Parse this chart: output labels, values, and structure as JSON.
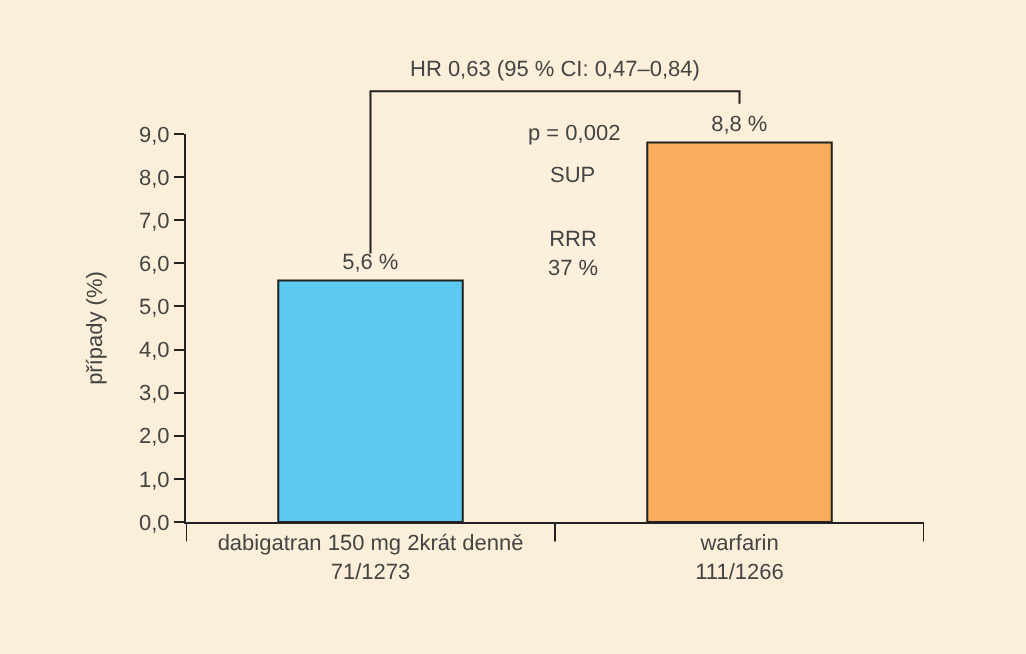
{
  "chart_data": {
    "type": "bar",
    "categories": [
      "dabigatran 150 mg 2krát denně\n71/1273",
      "warfarin\n111/1266"
    ],
    "values": [
      5.6,
      8.8
    ],
    "colors": [
      "#5ec9f2",
      "#f9ac5e"
    ],
    "value_labels": [
      "5,6 %",
      "8,8 %"
    ],
    "ylabel": "případy (%)",
    "ylim": [
      0,
      9
    ],
    "yticks": [
      {
        "value": 0,
        "label": "0,0"
      },
      {
        "value": 1,
        "label": "1,0"
      },
      {
        "value": 2,
        "label": "2,0"
      },
      {
        "value": 3,
        "label": "3,0"
      },
      {
        "value": 4,
        "label": "4,0"
      },
      {
        "value": 5,
        "label": "5,0"
      },
      {
        "value": 6,
        "label": "6,0"
      },
      {
        "value": 7,
        "label": "7,0"
      },
      {
        "value": 8,
        "label": "8,0"
      },
      {
        "value": 9,
        "label": "9,0"
      }
    ],
    "annotations": [
      "HR 0,63 (95 % CI: 0,47–0,84)",
      "p = 0,002",
      "SUP",
      "RRR\n37 %"
    ],
    "grid": false
  }
}
